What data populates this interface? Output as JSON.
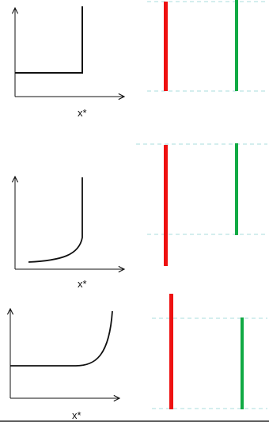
{
  "panels": [
    {
      "axis_label": "x*",
      "curve": "step-vertical",
      "bars": [
        {
          "color": "#ee1111",
          "length": "full"
        },
        {
          "color": "#11aa44",
          "length": "full"
        }
      ]
    },
    {
      "axis_label": "x*",
      "curve": "convex-to-vertical",
      "bars": [
        {
          "color": "#ee1111",
          "length": "extends-below-band"
        },
        {
          "color": "#11aa44",
          "length": "full"
        }
      ]
    },
    {
      "axis_label": "x*",
      "curve": "flat-then-rising",
      "bars": [
        {
          "color": "#ee1111",
          "length": "extends-above-band"
        },
        {
          "color": "#11aa44",
          "length": "full"
        }
      ]
    }
  ],
  "colors": {
    "guide_line": "#a8dede",
    "axis": "#111111",
    "bottom_rule": "#222222"
  }
}
